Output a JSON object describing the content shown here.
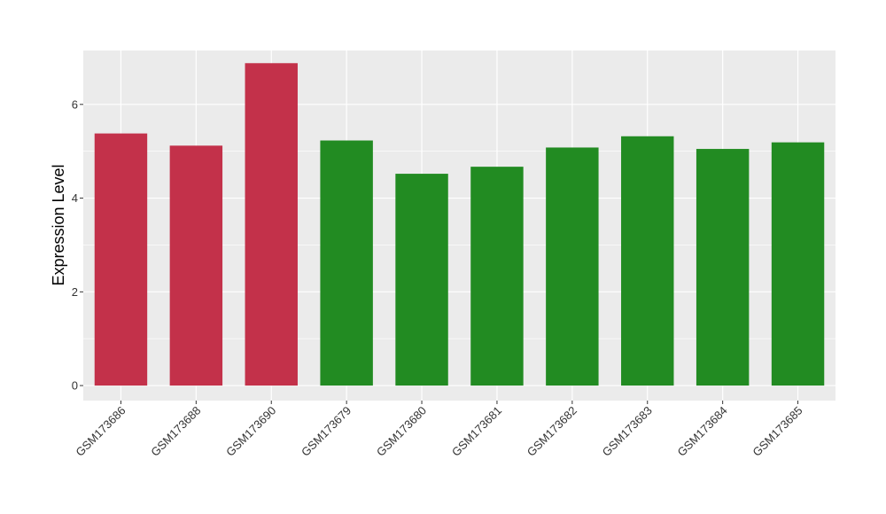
{
  "chart_data": {
    "type": "bar",
    "title": "",
    "xlabel": "",
    "ylabel": "Expression Level",
    "ylim": [
      -0.32,
      7.15
    ],
    "yticks": [
      0,
      2,
      4,
      6
    ],
    "grid": true,
    "categories": [
      "GSM173686",
      "GSM173688",
      "GSM173690",
      "GSM173679",
      "GSM173680",
      "GSM173681",
      "GSM173682",
      "GSM173683",
      "GSM173684",
      "GSM173685"
    ],
    "values": [
      5.38,
      5.12,
      6.88,
      5.23,
      4.52,
      4.67,
      5.08,
      5.32,
      5.05,
      5.19
    ],
    "bar_colors": [
      "#c3314a",
      "#c3314a",
      "#c3314a",
      "#228b22",
      "#228b22",
      "#228b22",
      "#228b22",
      "#228b22",
      "#228b22",
      "#228b22"
    ],
    "panel_background": "#ebebeb",
    "grid_color": "#ffffff"
  }
}
